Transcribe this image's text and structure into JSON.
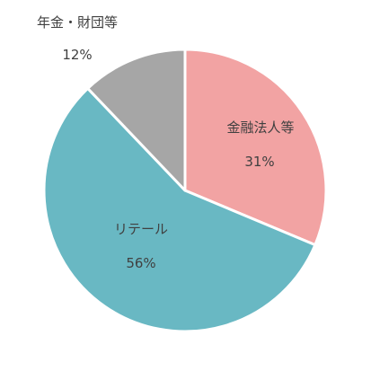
{
  "chart_data": {
    "type": "pie",
    "title": "",
    "start_angle_deg": 0,
    "direction": "clockwise",
    "slice_border_color": "#ffffff",
    "slices": [
      {
        "label": "金融法人等",
        "value": 31,
        "value_label": "31%",
        "color": "#F2A3A3"
      },
      {
        "label": "リテール",
        "value": 56,
        "value_label": "56%",
        "color": "#69B8C3"
      },
      {
        "label": "年金・財団等",
        "value": 12,
        "value_label": "12%",
        "color": "#A6A6A6"
      }
    ]
  }
}
